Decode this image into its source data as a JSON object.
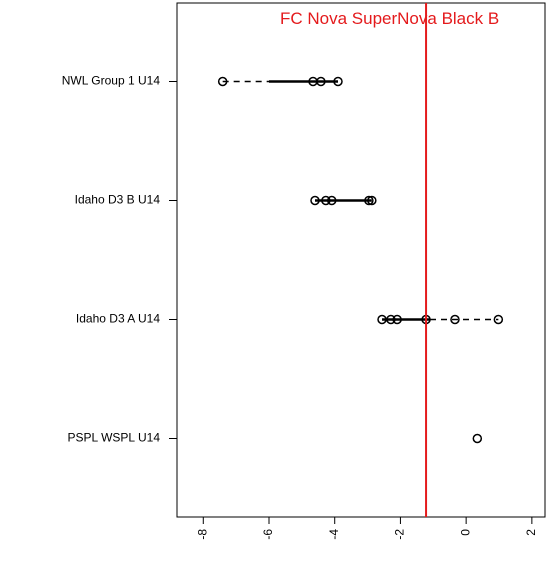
{
  "chart_data": {
    "type": "dotplot",
    "categories": [
      "NWL Group 1 U14",
      "Idaho D3 B U14",
      "Idaho D3 A U14",
      "PSPL WSPL U14"
    ],
    "values": [
      [
        -7.41,
        -4.66,
        -4.42,
        -3.9
      ],
      [
        -4.6,
        -4.27,
        -4.09,
        -2.96,
        -2.87
      ],
      [
        -2.56,
        -2.29,
        -2.1,
        -1.22,
        -0.34,
        0.98
      ],
      [
        0.34
      ]
    ],
    "box_low": [
      -6.0,
      -4.6,
      -2.56,
      0.34
    ],
    "box_high": [
      -3.9,
      -2.87,
      -1.1,
      0.34
    ],
    "reference_line": {
      "value": -1.22,
      "label": "FC Nova SuperNova Black B",
      "color": "#e41a1c"
    },
    "xlim": [
      -8.8,
      2.4
    ],
    "xticks": [
      -8,
      -6,
      -4,
      -2,
      0,
      2
    ]
  }
}
